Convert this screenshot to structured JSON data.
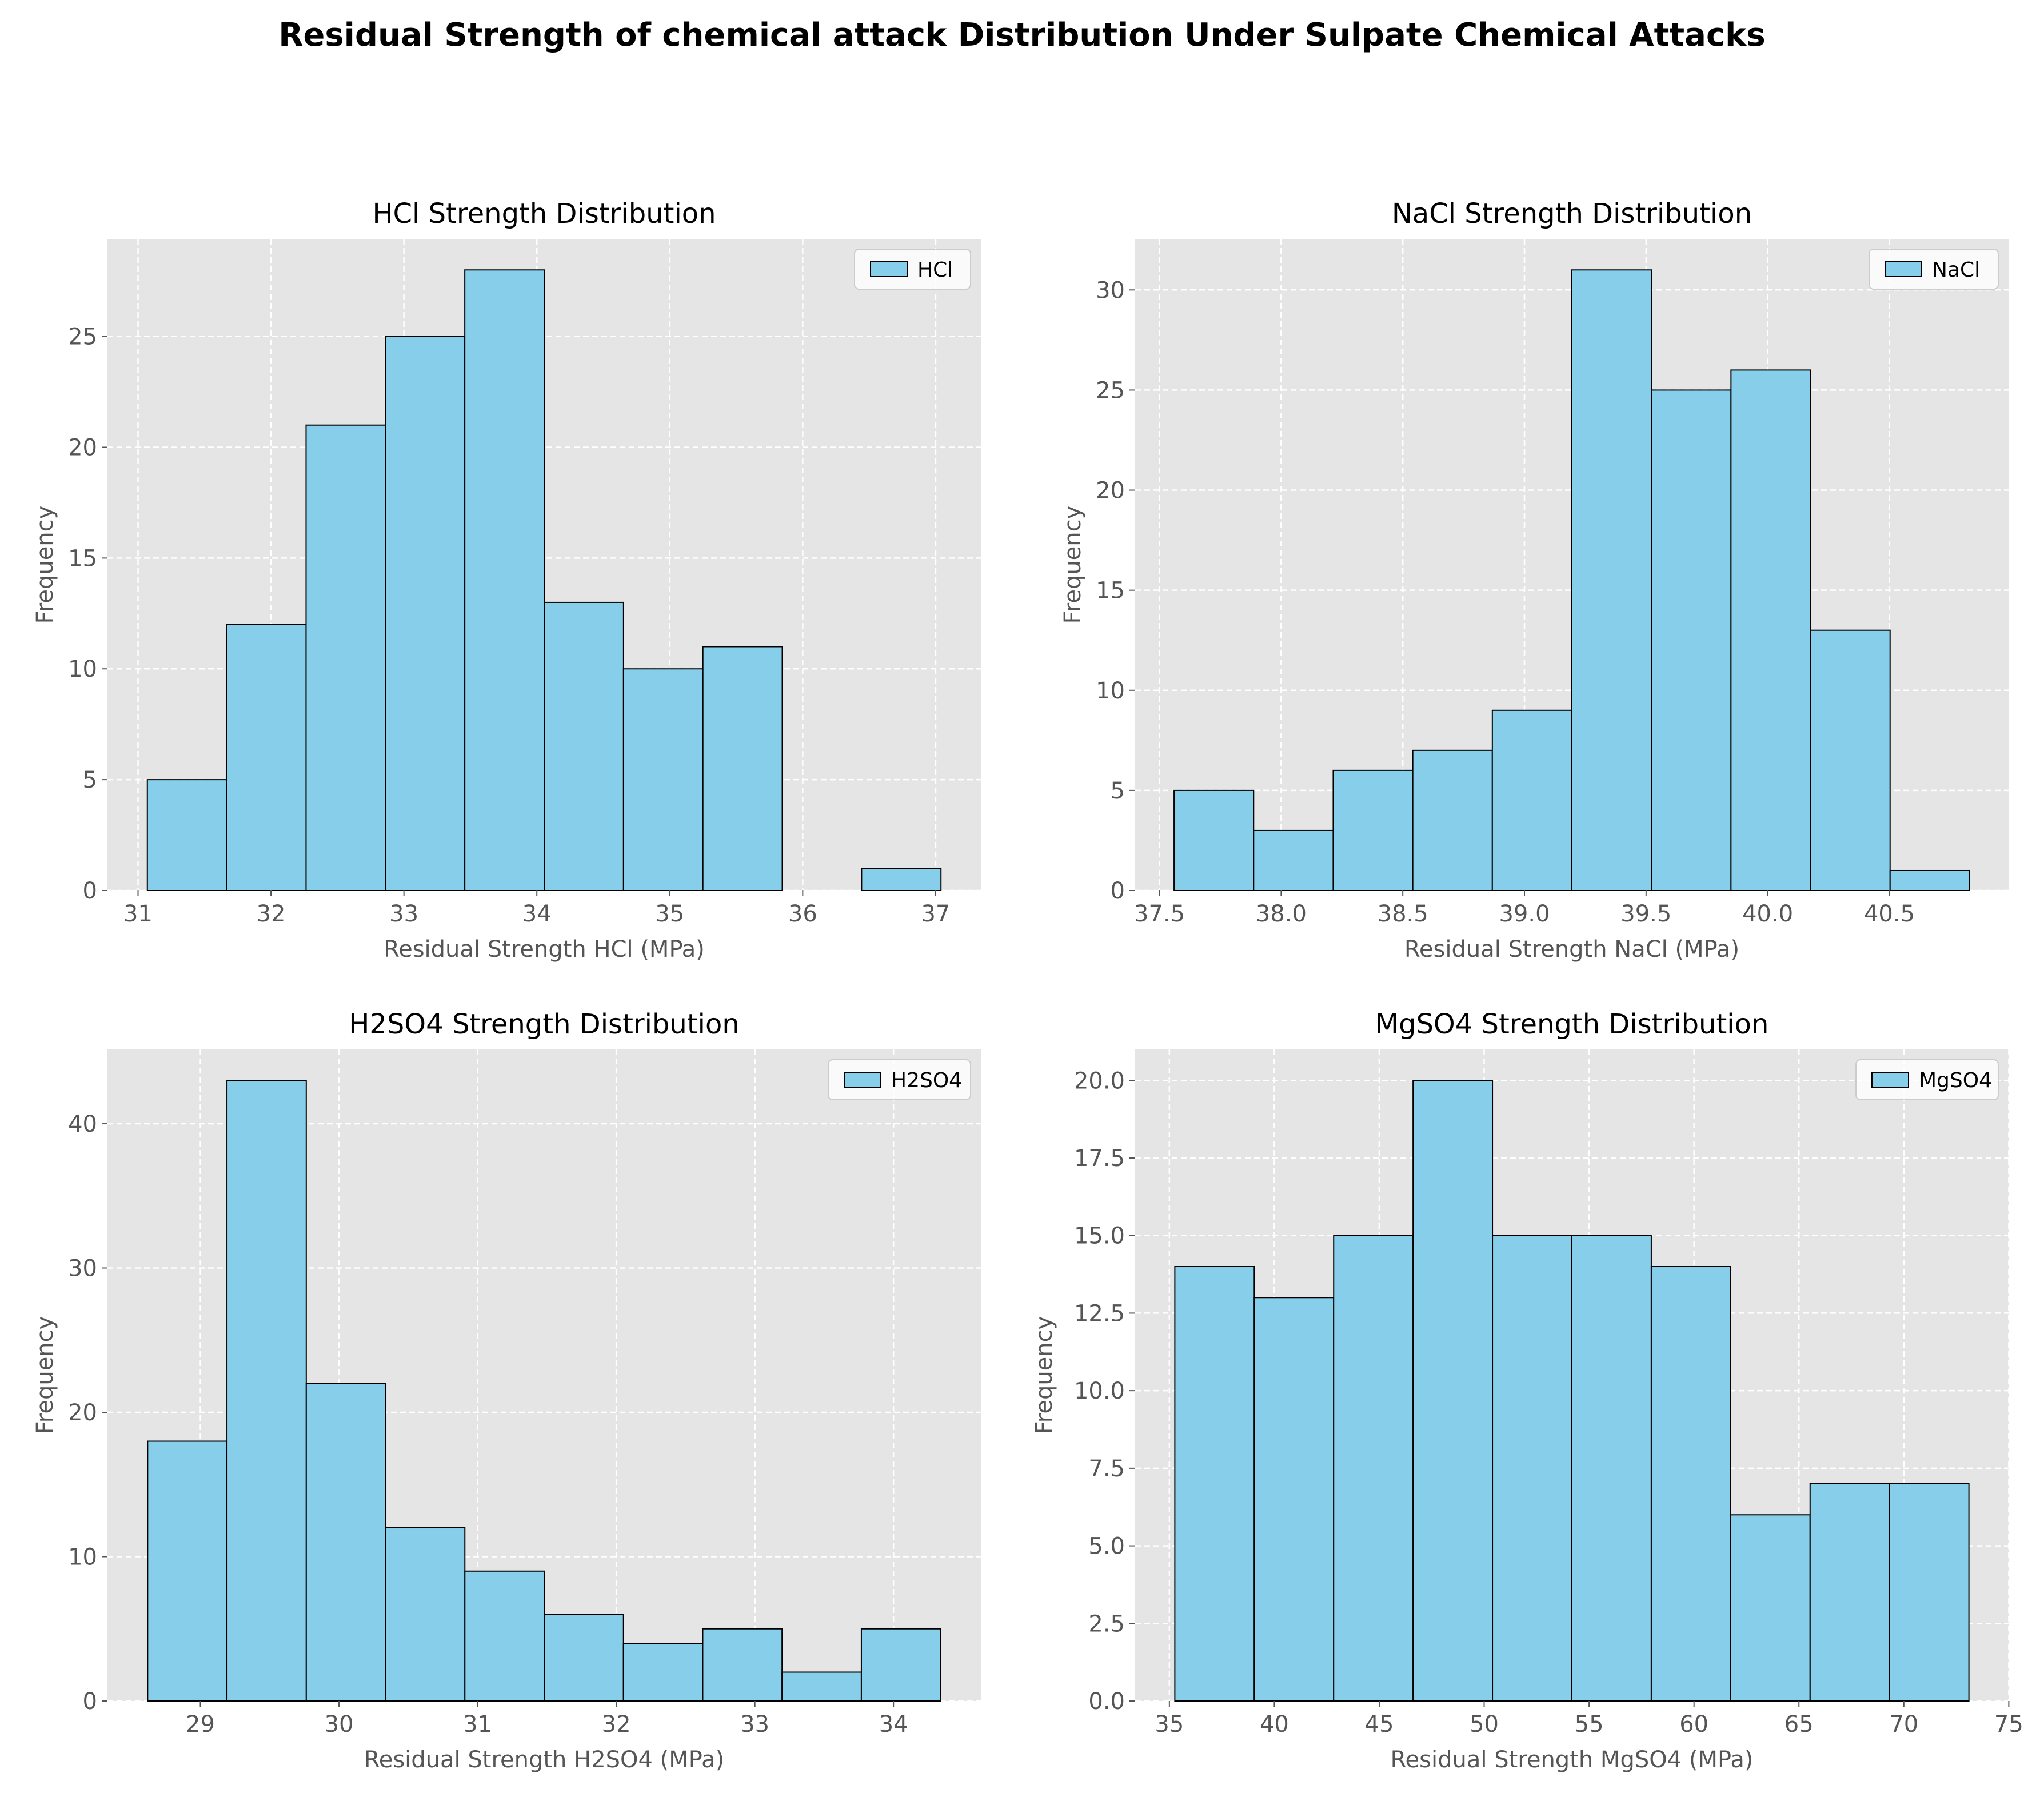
{
  "title": "Residual Strength of chemical attack Distribution Under Sulpate Chemical Attacks",
  "chart_data": [
    {
      "type": "bar",
      "title": "HCl Strength Distribution",
      "xlabel": "Residual Strength HCl (MPa)",
      "ylabel": "Frequency",
      "legend": "HCl",
      "legend_position": "upper right",
      "grid": true,
      "bin_edges": [
        31.07,
        31.667,
        32.264,
        32.861,
        33.458,
        34.055,
        34.652,
        35.249,
        35.846,
        36.443,
        37.04
      ],
      "values": [
        5,
        12,
        21,
        25,
        28,
        13,
        10,
        11,
        0,
        1
      ],
      "xlim": [
        30.77,
        37.34
      ],
      "ylim": [
        0,
        29.4
      ],
      "xticks": [
        31,
        32,
        33,
        34,
        35,
        36,
        37
      ],
      "xtick_labels": [
        "31",
        "32",
        "33",
        "34",
        "35",
        "36",
        "37"
      ],
      "yticks": [
        0,
        5,
        10,
        15,
        20,
        25
      ],
      "ytick_labels": [
        "0",
        "5",
        "10",
        "15",
        "20",
        "25"
      ]
    },
    {
      "type": "bar",
      "title": "NaCl Strength Distribution",
      "xlabel": "Residual Strength NaCl (MPa)",
      "ylabel": "Frequency",
      "legend": "NaCl",
      "legend_position": "upper right",
      "grid": true,
      "bin_edges": [
        37.56,
        37.887,
        38.214,
        38.541,
        38.868,
        39.195,
        39.522,
        39.849,
        40.176,
        40.503,
        40.83
      ],
      "values": [
        5,
        3,
        6,
        7,
        9,
        31,
        25,
        26,
        13,
        1
      ],
      "xlim": [
        37.4,
        40.99
      ],
      "ylim": [
        0,
        32.55
      ],
      "xticks": [
        37.5,
        38.0,
        38.5,
        39.0,
        39.5,
        40.0,
        40.5
      ],
      "xtick_labels": [
        "37.5",
        "38.0",
        "38.5",
        "39.0",
        "39.5",
        "40.0",
        "40.5"
      ],
      "yticks": [
        0,
        5,
        10,
        15,
        20,
        25,
        30
      ],
      "ytick_labels": [
        "0",
        "5",
        "10",
        "15",
        "20",
        "25",
        "30"
      ]
    },
    {
      "type": "bar",
      "title": "H2SO4 Strength Distribution",
      "xlabel": "Residual Strength H2SO4 (MPa)",
      "ylabel": "Frequency",
      "legend": "H2SO4",
      "legend_position": "upper right",
      "grid": true,
      "bin_edges": [
        28.62,
        29.192,
        29.764,
        30.336,
        30.908,
        31.48,
        32.052,
        32.624,
        33.196,
        33.768,
        34.34
      ],
      "values": [
        18,
        43,
        22,
        12,
        9,
        6,
        4,
        5,
        2,
        5
      ],
      "xlim": [
        28.33,
        34.63
      ],
      "ylim": [
        0,
        45.15
      ],
      "xticks": [
        29,
        30,
        31,
        32,
        33,
        34
      ],
      "xtick_labels": [
        "29",
        "30",
        "31",
        "32",
        "33",
        "34"
      ],
      "yticks": [
        0,
        10,
        20,
        30,
        40
      ],
      "ytick_labels": [
        "0",
        "10",
        "20",
        "30",
        "40"
      ]
    },
    {
      "type": "bar",
      "title": "MgSO4 Strength Distribution",
      "xlabel": "Residual Strength MgSO4 (MPa)",
      "ylabel": "Frequency",
      "legend": "MgSO4",
      "legend_position": "upper right",
      "grid": true,
      "bin_edges": [
        35.26,
        39.044,
        42.828,
        46.612,
        50.396,
        54.18,
        57.964,
        61.748,
        65.532,
        69.316,
        73.1
      ],
      "values": [
        14,
        13,
        15,
        20,
        15,
        15,
        14,
        6,
        7,
        7
      ],
      "xlim": [
        33.37,
        74.99
      ],
      "ylim": [
        0,
        21.0
      ],
      "xticks": [
        35,
        40,
        45,
        50,
        55,
        60,
        65,
        70,
        75
      ],
      "xtick_labels": [
        "35",
        "40",
        "45",
        "50",
        "55",
        "60",
        "65",
        "70",
        "75"
      ],
      "yticks": [
        0,
        2.5,
        5,
        7.5,
        10,
        12.5,
        15,
        17.5,
        20
      ],
      "ytick_labels": [
        "0.0",
        "2.5",
        "5.0",
        "7.5",
        "10.0",
        "12.5",
        "15.0",
        "17.5",
        "20.0"
      ]
    }
  ]
}
